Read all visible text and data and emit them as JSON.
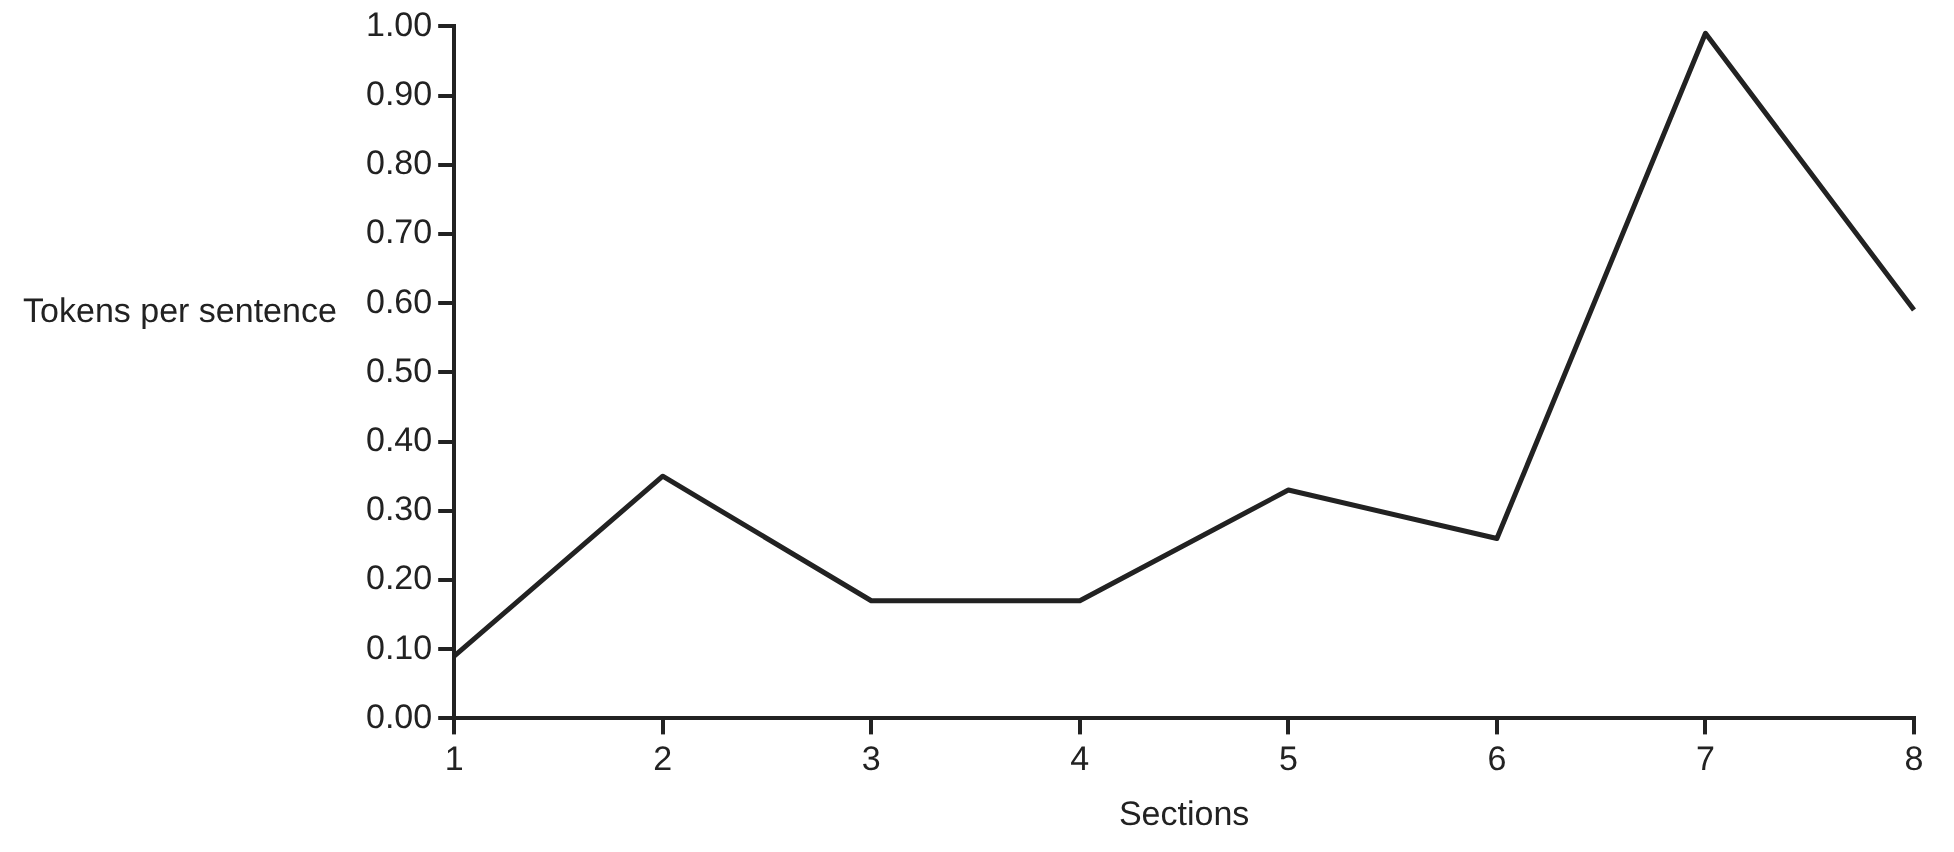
{
  "chart_data": {
    "type": "line",
    "xlabel": "Sections",
    "ylabel": "Tokens per sentence",
    "categories": [
      "1",
      "2",
      "3",
      "4",
      "5",
      "6",
      "7",
      "8"
    ],
    "series": [
      {
        "color": "#222222",
        "values": [
          0.09,
          0.35,
          0.17,
          0.17,
          0.33,
          0.26,
          0.99,
          0.59
        ]
      }
    ],
    "ylim": [
      0,
      1
    ],
    "yticks": [
      {
        "value": 0,
        "label": "0.00"
      },
      {
        "value": 0.1,
        "label": "0.10"
      },
      {
        "value": 0.2,
        "label": "0.20"
      },
      {
        "value": 0.3,
        "label": "0.30"
      },
      {
        "value": 0.4,
        "label": "0.40"
      },
      {
        "value": 0.5,
        "label": "0.50"
      },
      {
        "value": 0.6,
        "label": "0.60"
      },
      {
        "value": 0.7,
        "label": "0.70"
      },
      {
        "value": 0.8,
        "label": "0.80"
      },
      {
        "value": 0.9,
        "label": "0.90"
      },
      {
        "value": 1,
        "label": "1.00"
      }
    ],
    "grid": false,
    "legend": false,
    "marker": "none",
    "line_style": "solid"
  }
}
